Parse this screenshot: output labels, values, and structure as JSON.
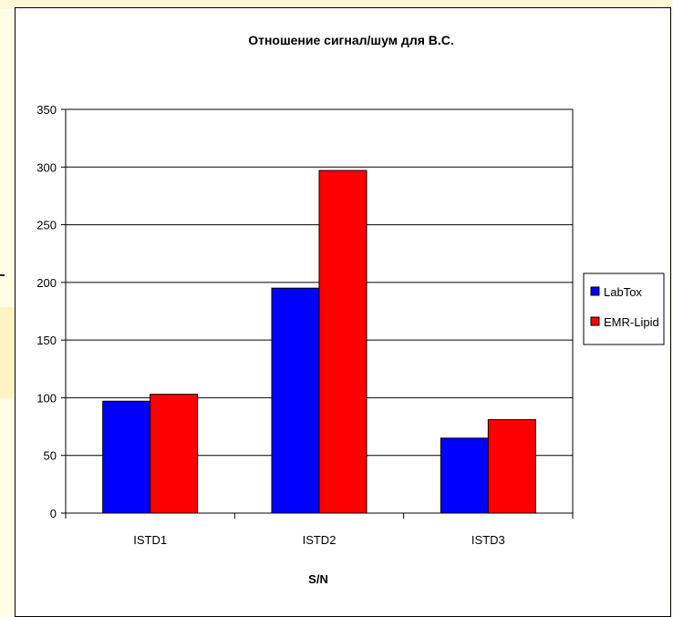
{
  "chart_data": {
    "type": "bar",
    "title": "Отношение сигнал/шум для В.С.",
    "xlabel": "S/N",
    "ylabel": "",
    "categories": [
      "ISTD1",
      "ISTD2",
      "ISTD3"
    ],
    "series": [
      {
        "name": "LabTox",
        "color": "#0000ff",
        "values": [
          97,
          195,
          65
        ]
      },
      {
        "name": "EMR-Lipid",
        "color": "#ff0000",
        "values": [
          103,
          297,
          81
        ]
      }
    ],
    "ylim": [
      0,
      350
    ],
    "yticks": [
      0,
      50,
      100,
      150,
      200,
      250,
      300,
      350
    ],
    "grid": true,
    "legend": "right"
  }
}
